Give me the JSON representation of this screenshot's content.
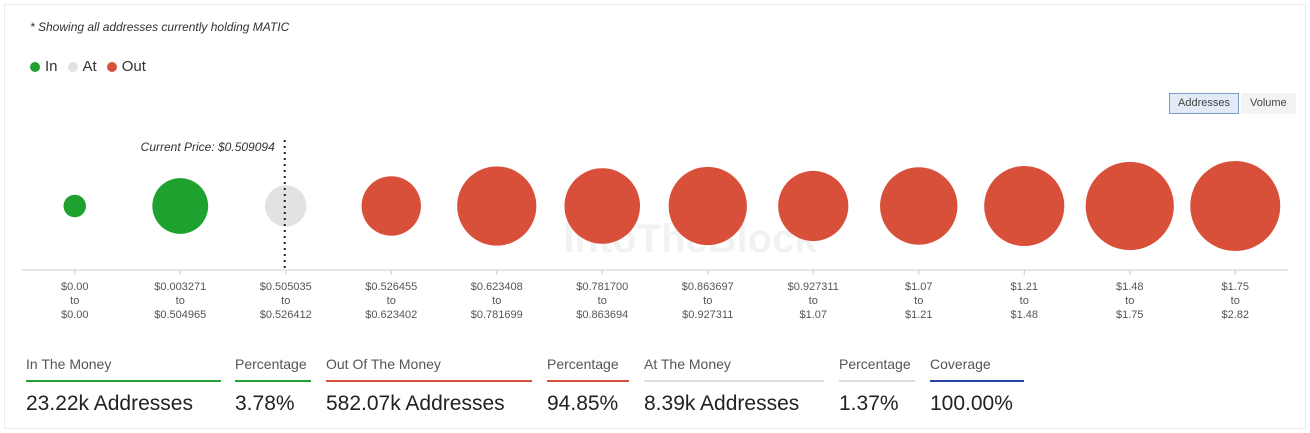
{
  "note": "* Showing all addresses currently holding MATIC",
  "legend": [
    {
      "label": "In",
      "color": "#1ea12e"
    },
    {
      "label": "At",
      "color": "#e2e2e2"
    },
    {
      "label": "Out",
      "color": "#d9503a"
    }
  ],
  "toggle": {
    "addresses": "Addresses",
    "volume": "Volume"
  },
  "watermark": "IntoTheBlock",
  "chart_data": {
    "type": "scatter",
    "title": "",
    "current_price_label": "Current Price: $0.509094",
    "current_price_bucket_index": 2,
    "buckets": [
      {
        "range_low": "$0.00",
        "sep": "to",
        "range_high": "$0.00",
        "status": "In",
        "relative_size": 0.25
      },
      {
        "range_low": "$0.003271",
        "sep": "to",
        "range_high": "$0.504965",
        "status": "In",
        "relative_size": 0.62
      },
      {
        "range_low": "$0.505035",
        "sep": "to",
        "range_high": "$0.526412",
        "status": "At",
        "relative_size": 0.46
      },
      {
        "range_low": "$0.526455",
        "sep": "to",
        "range_high": "$0.623402",
        "status": "Out",
        "relative_size": 0.66
      },
      {
        "range_low": "$0.623408",
        "sep": "to",
        "range_high": "$0.781699",
        "status": "Out",
        "relative_size": 0.88
      },
      {
        "range_low": "$0.781700",
        "sep": "to",
        "range_high": "$0.863694",
        "status": "Out",
        "relative_size": 0.84
      },
      {
        "range_low": "$0.863697",
        "sep": "to",
        "range_high": "$0.927311",
        "status": "Out",
        "relative_size": 0.87
      },
      {
        "range_low": "$0.927311",
        "sep": "to",
        "range_high": "$1.07",
        "status": "Out",
        "relative_size": 0.78
      },
      {
        "range_low": "$1.07",
        "sep": "to",
        "range_high": "$1.21",
        "status": "Out",
        "relative_size": 0.86
      },
      {
        "range_low": "$1.21",
        "sep": "to",
        "range_high": "$1.48",
        "status": "Out",
        "relative_size": 0.89
      },
      {
        "range_low": "$1.48",
        "sep": "to",
        "range_high": "$1.75",
        "status": "Out",
        "relative_size": 0.98
      },
      {
        "range_low": "$1.75",
        "sep": "to",
        "range_high": "$2.82",
        "status": "Out",
        "relative_size": 1.0
      }
    ]
  },
  "stats": [
    {
      "label": "In The Money",
      "value": "23.22k Addresses",
      "color": "#1ea12e"
    },
    {
      "label": "Percentage",
      "value": "3.78%",
      "color": "#1ea12e"
    },
    {
      "label": "Out Of The Money",
      "value": "582.07k Addresses",
      "color": "#d9503a"
    },
    {
      "label": "Percentage",
      "value": "94.85%",
      "color": "#d9503a"
    },
    {
      "label": "At The Money",
      "value": "8.39k Addresses",
      "color": "#dedede"
    },
    {
      "label": "Percentage",
      "value": "1.37%",
      "color": "#dedede"
    },
    {
      "label": "Coverage",
      "value": "100.00%",
      "color": "#2543a8"
    }
  ]
}
